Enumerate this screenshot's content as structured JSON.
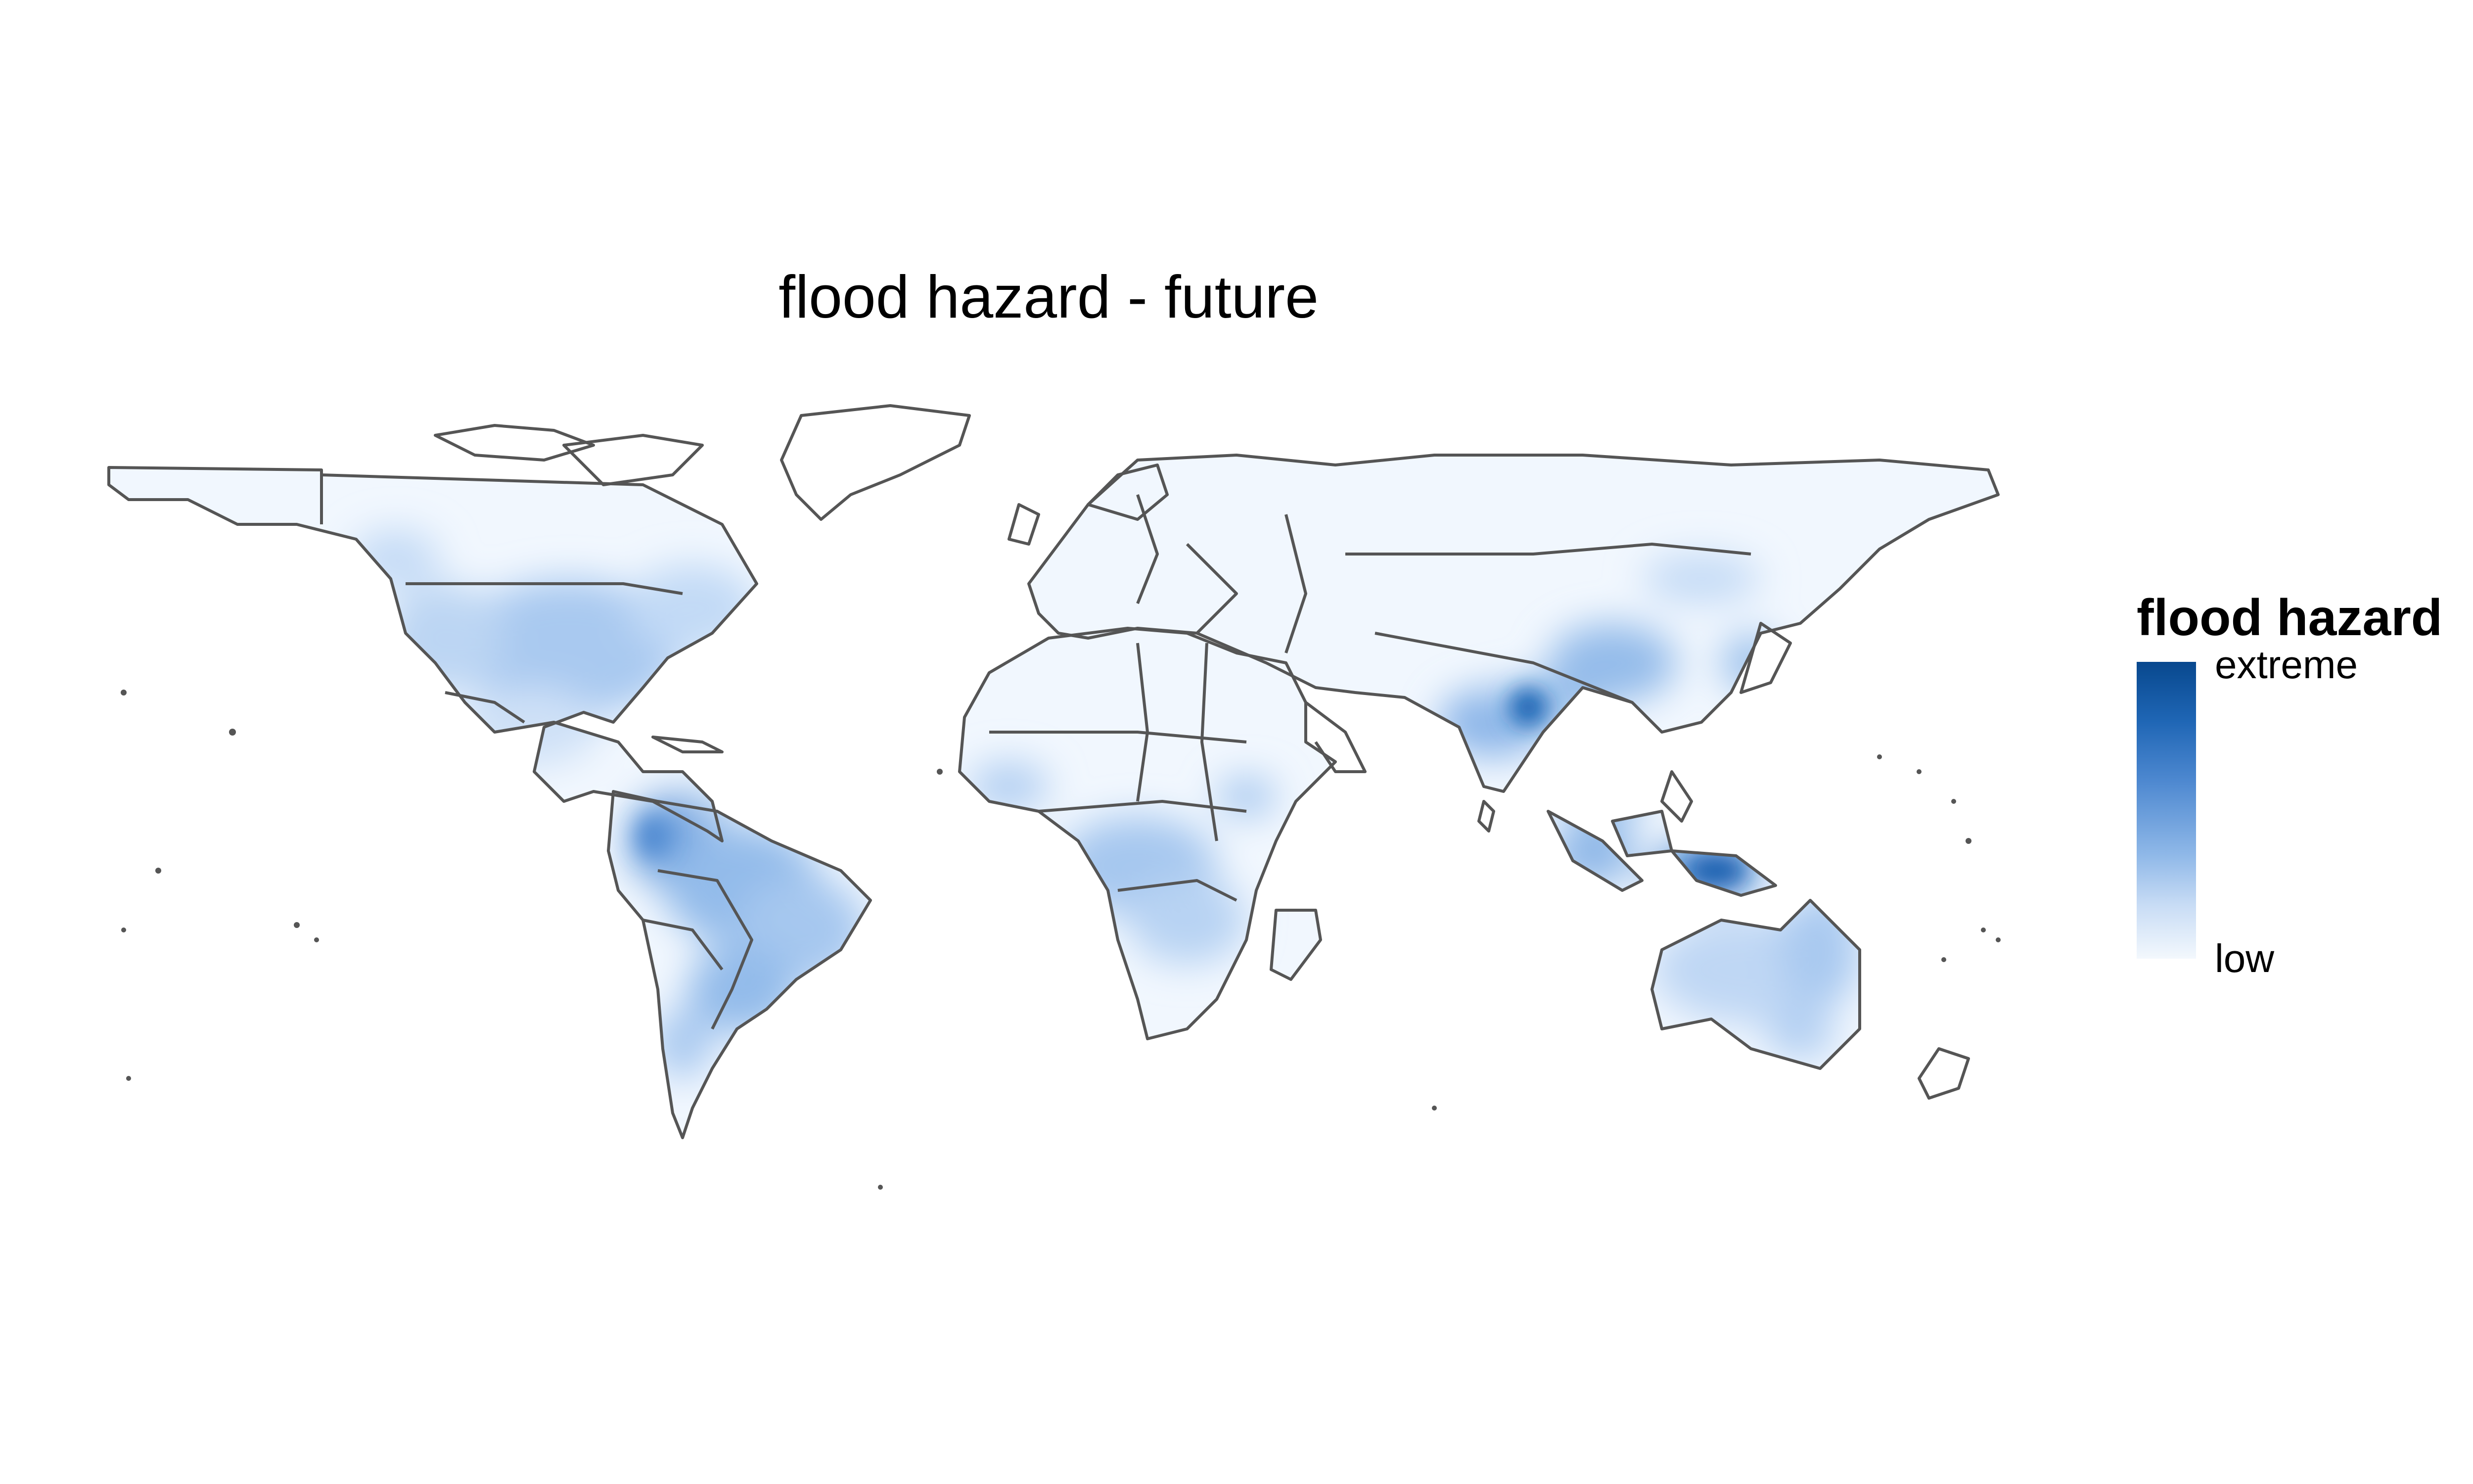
{
  "map": {
    "title": "flood hazard - future",
    "scale": "continuous",
    "colors": {
      "low": "#f3f8fd",
      "mid": "#9ec4ee",
      "high": "#08488e",
      "border": "#555555"
    }
  },
  "legend": {
    "title": "flood hazard",
    "high_label": "extreme",
    "low_label": "low"
  }
}
